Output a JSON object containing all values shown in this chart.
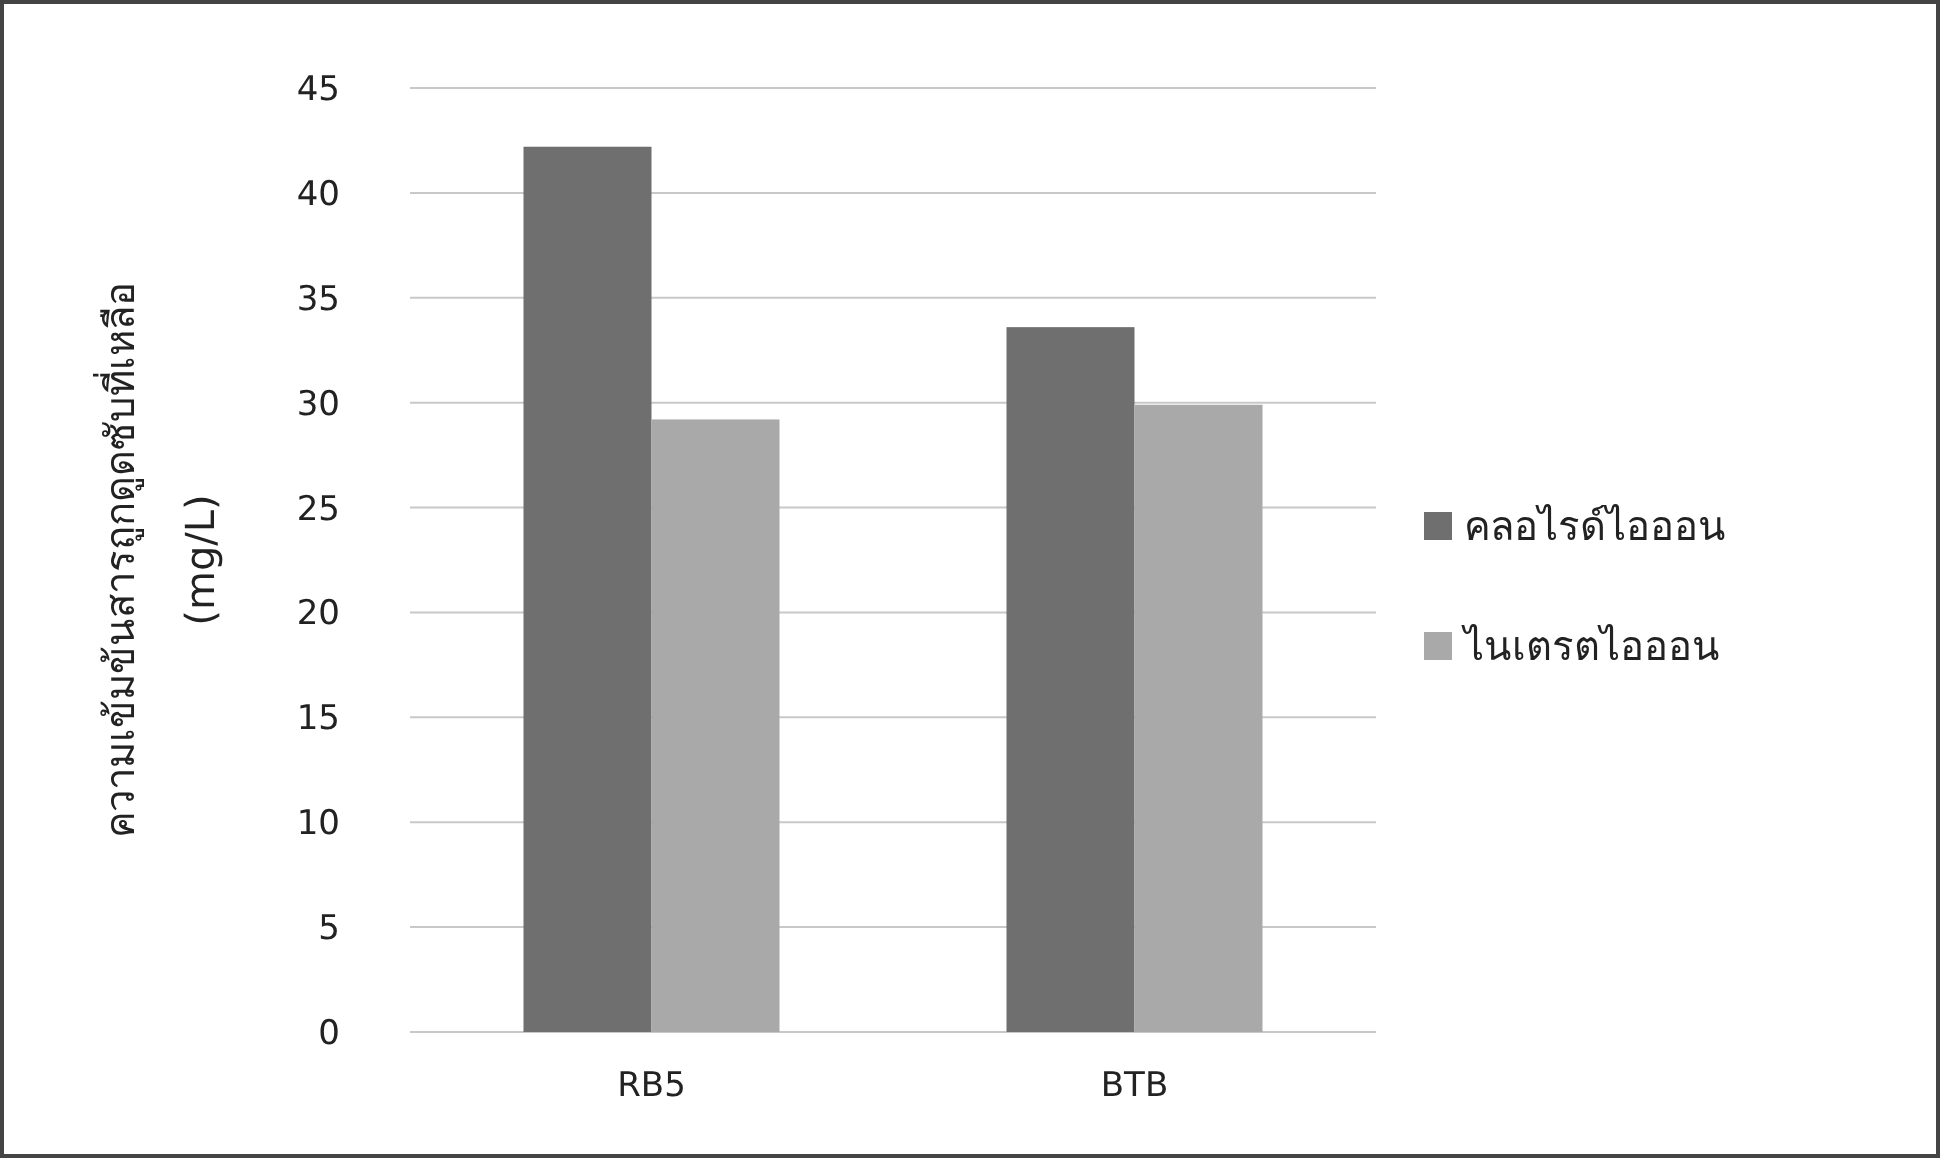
{
  "chart_data": {
    "type": "bar",
    "ylabel": "ความเข้มข้นสารถูกดูดซับที่เหลือ\n(mg/L)",
    "categories": [
      "RB5",
      "BTB"
    ],
    "series": [
      {
        "name": "คลอไรด์ไอออน",
        "color": "#6f6f6f",
        "values": [
          42.2,
          33.6
        ]
      },
      {
        "name": "ไนเตรตไอออน",
        "color": "#a9a9a9",
        "values": [
          29.2,
          29.9
        ]
      }
    ],
    "ylim": [
      0,
      45
    ],
    "yticks": [
      0,
      5,
      10,
      15,
      20,
      25,
      30,
      35,
      40,
      45
    ],
    "grid": "y",
    "legend": "right"
  }
}
